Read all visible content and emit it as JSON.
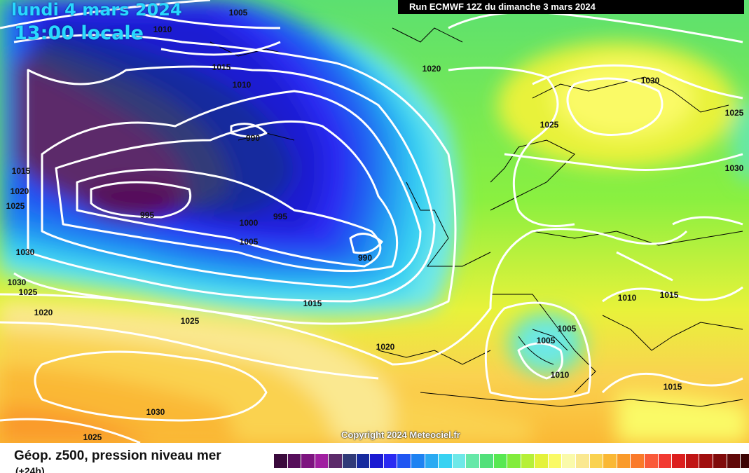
{
  "header": {
    "date_title": "lundi 4 mars 2024",
    "time_title": "13:00 locale",
    "run_banner": "Run ECMWF 12Z du dimanche 3 mars 2024"
  },
  "copyright": "Copyright 2024 Meteociel.fr",
  "legend": {
    "title": "Géop. z500, pression niveau mer",
    "subtitle": "(+24h)",
    "colors": [
      "#3a0a3c",
      "#560e5a",
      "#7d147f",
      "#a01fa0",
      "#5c2a6a",
      "#303a78",
      "#162a9e",
      "#1a1ad2",
      "#2a2af2",
      "#2056f2",
      "#1e82f2",
      "#2aaaf2",
      "#38d2f2",
      "#6ee8e8",
      "#66e8a8",
      "#52e07a",
      "#58e852",
      "#82ec3c",
      "#b6f038",
      "#e4f23a",
      "#fafa66",
      "#fafaaa",
      "#fae890",
      "#fad250",
      "#fab834",
      "#fa9a2a",
      "#fa7a2a",
      "#fa5a3a",
      "#f23a32",
      "#dc1e1e",
      "#c01414",
      "#a00e0e",
      "#800a0a",
      "#600808",
      "#3c0404",
      "#101010"
    ]
  },
  "pressure_labels": [
    {
      "text": "1005"
    },
    {
      "text": "1010"
    },
    {
      "text": "1015"
    },
    {
      "text": "1010"
    },
    {
      "text": "990"
    },
    {
      "text": "1020"
    },
    {
      "text": "1030"
    },
    {
      "text": "1025"
    },
    {
      "text": "1030"
    },
    {
      "text": "1015"
    },
    {
      "text": "1020"
    },
    {
      "text": "1025"
    },
    {
      "text": "995"
    },
    {
      "text": "995"
    },
    {
      "text": "1000"
    },
    {
      "text": "1005"
    },
    {
      "text": "990"
    },
    {
      "text": "1025"
    },
    {
      "text": "1030"
    },
    {
      "text": "1030"
    },
    {
      "text": "1025"
    },
    {
      "text": "1020"
    },
    {
      "text": "1015"
    },
    {
      "text": "1025"
    },
    {
      "text": "1020"
    },
    {
      "text": "1010"
    },
    {
      "text": "1015"
    },
    {
      "text": "1005"
    },
    {
      "text": "1005"
    },
    {
      "text": "1010"
    },
    {
      "text": "1015"
    },
    {
      "text": "1030"
    },
    {
      "text": "1025"
    }
  ]
}
